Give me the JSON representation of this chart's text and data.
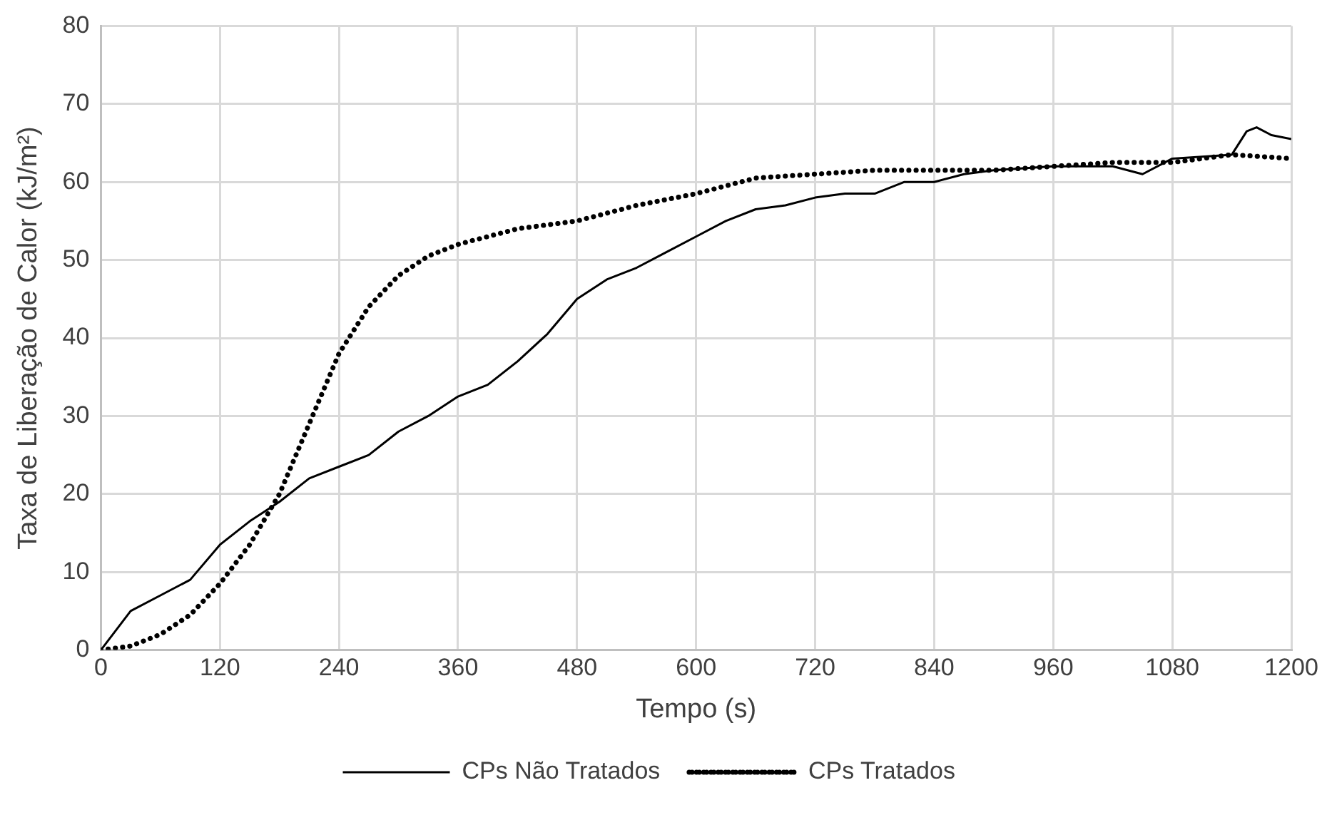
{
  "chart_data": {
    "type": "line",
    "xlabel": "Tempo (s)",
    "ylabel": "Taxa de Liberação de Calor (kJ/m²)",
    "xlim": [
      0,
      1200
    ],
    "xticks": [
      0,
      120,
      240,
      360,
      480,
      600,
      720,
      840,
      960,
      1080,
      1200
    ],
    "ylim": [
      0,
      80
    ],
    "yticks": [
      0,
      10,
      20,
      30,
      40,
      50,
      60,
      70,
      80
    ],
    "grid": true,
    "legend": "bottom",
    "marker": "none",
    "series": [
      {
        "name": "CPs Não Tratados",
        "color": "#000000",
        "line_style": "solid",
        "x": [
          0,
          30,
          60,
          90,
          120,
          150,
          180,
          210,
          240,
          270,
          300,
          330,
          360,
          390,
          420,
          450,
          480,
          510,
          540,
          570,
          600,
          630,
          660,
          690,
          720,
          750,
          780,
          810,
          840,
          870,
          900,
          960,
          1020,
          1050,
          1080,
          1140,
          1155,
          1165,
          1180,
          1200
        ],
        "values": [
          0,
          5,
          7,
          9,
          13.5,
          16.5,
          19,
          22,
          23.5,
          25,
          28,
          30,
          32.5,
          34,
          37,
          40.5,
          45,
          47.5,
          49,
          51,
          53,
          55,
          56.5,
          57,
          58,
          58.5,
          58.5,
          60,
          60,
          61,
          61.5,
          62,
          62,
          61,
          63,
          63.5,
          66.5,
          67,
          66,
          65.5
        ]
      },
      {
        "name": "CPs Tratados",
        "color": "#000000",
        "line_style": "dotted",
        "x": [
          0,
          30,
          60,
          90,
          120,
          150,
          180,
          210,
          240,
          270,
          300,
          330,
          360,
          390,
          420,
          480,
          540,
          600,
          660,
          720,
          780,
          840,
          900,
          960,
          1020,
          1080,
          1140,
          1200
        ],
        "values": [
          0,
          0.5,
          2,
          4.5,
          8.5,
          13.5,
          20,
          29,
          38,
          44,
          48,
          50.5,
          52,
          53,
          54,
          55,
          57,
          58.5,
          60.5,
          61,
          61.5,
          61.5,
          61.5,
          62,
          62.5,
          62.5,
          63.5,
          63
        ]
      }
    ]
  }
}
